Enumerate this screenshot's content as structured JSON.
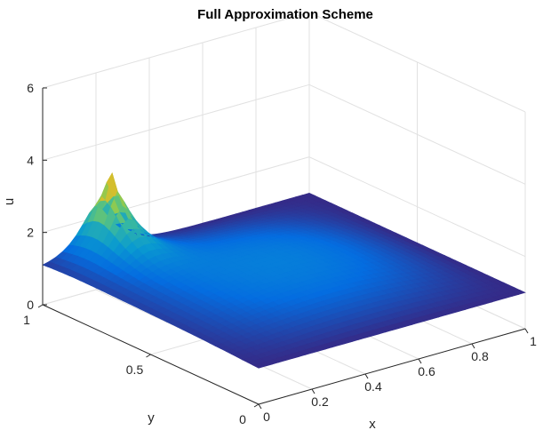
{
  "chart_data": {
    "type": "surface",
    "title": "Full Approximation Scheme",
    "xlabel": "x",
    "ylabel": "y",
    "zlabel": "u",
    "xlim": [
      0,
      1
    ],
    "ylim": [
      0,
      1
    ],
    "zlim": [
      0,
      6
    ],
    "x_ticks": [
      "0",
      "0.2",
      "0.4",
      "0.6",
      "0.8",
      "1"
    ],
    "y_ticks": [
      "0",
      "0.5",
      "1"
    ],
    "z_ticks": [
      "0",
      "2",
      "4",
      "6"
    ],
    "grid": true,
    "colormap": "parula",
    "surface_points": [
      {
        "x": 0,
        "y": 0,
        "u": 1.0
      },
      {
        "x": 1,
        "y": 0,
        "u": 1.0
      },
      {
        "x": 0,
        "y": 1,
        "u": 1.0
      },
      {
        "x": 1,
        "y": 1,
        "u": 1.0
      },
      {
        "x": 0,
        "y": 0.5,
        "u": 1.1
      },
      {
        "x": 0.5,
        "y": 0.5,
        "u": 1.45
      },
      {
        "x": 0.5,
        "y": 0,
        "u": 1.05
      },
      {
        "x": 0.5,
        "y": 1,
        "u": 1.05
      },
      {
        "x": 1,
        "y": 0.5,
        "u": 1.05
      },
      {
        "x": 0.2,
        "y": 0.93,
        "u": 3.95
      }
    ],
    "peak": {
      "x": 0.2,
      "y": 0.93,
      "u": 3.95
    }
  }
}
